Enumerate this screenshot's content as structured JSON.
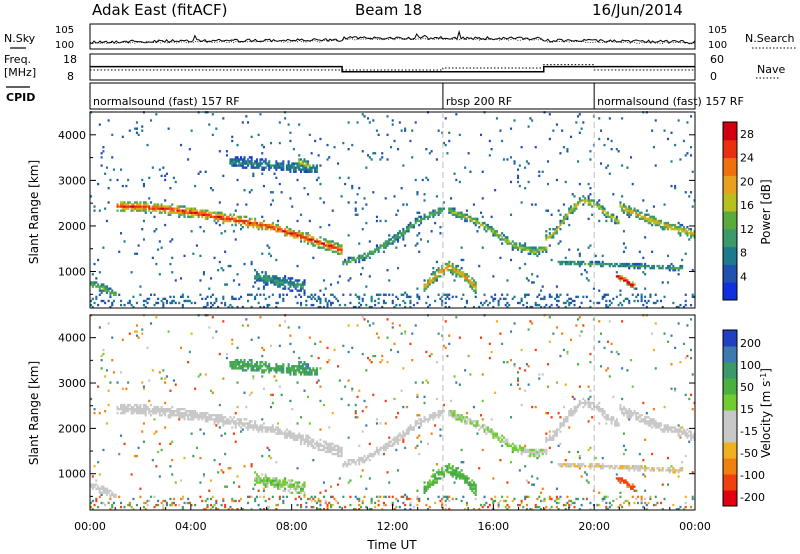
{
  "header": {
    "station": "Adak East (fitACF)",
    "beam": "Beam 18",
    "date": "16/Jun/2014"
  },
  "top_panel": {
    "left_label": "N.Sky",
    "left_ticks": [
      "10^5",
      "10^0"
    ],
    "right_label": "N.Search",
    "right_ticks": [
      "10^5",
      "10^0"
    ]
  },
  "freq_panel": {
    "left_label": "Freq.",
    "left_unit": "[MHz]",
    "left_ticks": [
      "18",
      "8"
    ],
    "right_label": "Nave",
    "right_ticks": [
      "60",
      "0"
    ]
  },
  "cpid_panel": {
    "label": "CPID",
    "segments": [
      {
        "text": "normalsound (fast) 157 RF",
        "start_h": 0,
        "end_h": 14
      },
      {
        "text": "rbsp 200 RF",
        "start_h": 14,
        "end_h": 20
      },
      {
        "text": "normalsound (fast) 157 RF",
        "start_h": 20,
        "end_h": 24
      }
    ]
  },
  "axes": {
    "ylabel": "Slant Range [km]",
    "y_ticks": [
      "1000",
      "2000",
      "3000",
      "4000"
    ],
    "x_ticks": [
      "00:00",
      "04:00",
      "08:00",
      "12:00",
      "16:00",
      "20:00",
      "00:00"
    ],
    "xlabel": "Time UT"
  },
  "power_colorbar": {
    "label": "Power [dB]",
    "ticks": [
      "4",
      "8",
      "12",
      "16",
      "20",
      "24",
      "28"
    ],
    "colors": [
      "#1030e0",
      "#2050b0",
      "#1c7a8c",
      "#3c9a6a",
      "#5aaa3c",
      "#b8c020",
      "#e8a020",
      "#f07010",
      "#e83010",
      "#d00010"
    ]
  },
  "velocity_colorbar": {
    "label": "Velocity [m s^-1]",
    "ticks": [
      "200",
      "100",
      "50",
      "15",
      "-15",
      "-50",
      "-100",
      "-200"
    ],
    "colors": [
      "#2040c0",
      "#3c7ab0",
      "#3c9a6a",
      "#4ab040",
      "#70cc30",
      "#c8c8c8",
      "#c8c8c8",
      "#f0b020",
      "#f08010",
      "#f04010",
      "#e00010"
    ]
  },
  "chart_data": {
    "type": "heatmap",
    "x_units": "hours UT",
    "xlim": [
      0,
      24
    ],
    "ylim": [
      200,
      4500
    ],
    "power_range_dB": [
      0,
      30
    ],
    "velocity_range": [
      -200,
      200
    ],
    "freq_steps_MHz": [
      {
        "start_h": 0,
        "end_h": 10,
        "value": 13.5
      },
      {
        "start_h": 10,
        "end_h": 18,
        "value": 10.5
      },
      {
        "start_h": 18,
        "end_h": 24,
        "value": 13.5
      }
    ],
    "nave_steps": [
      {
        "start_h": 0,
        "end_h": 14,
        "value": 24
      },
      {
        "start_h": 14,
        "end_h": 18,
        "value": 30
      },
      {
        "start_h": 18,
        "end_h": 20,
        "value": 40
      },
      {
        "start_h": 20,
        "end_h": 24,
        "value": 24
      }
    ],
    "echo_bands": [
      {
        "points": [
          [
            1.0,
            2420
          ],
          [
            2.5,
            2380
          ],
          [
            4.0,
            2280
          ],
          [
            5.5,
            2130
          ],
          [
            7.0,
            1980
          ],
          [
            8.5,
            1720
          ],
          [
            9.5,
            1540
          ],
          [
            10.0,
            1440
          ]
        ],
        "width_km": 240,
        "power": 18,
        "velocity": 0
      },
      {
        "points": [
          [
            10.0,
            1150
          ],
          [
            11.0,
            1350
          ],
          [
            12.0,
            1680
          ],
          [
            13.0,
            2100
          ],
          [
            14.0,
            2350
          ]
        ],
        "width_km": 180,
        "power": 9,
        "velocity": 0
      },
      {
        "points": [
          [
            13.2,
            650
          ],
          [
            13.7,
            900
          ],
          [
            14.2,
            1100
          ],
          [
            14.8,
            900
          ],
          [
            15.3,
            620
          ]
        ],
        "width_km": 260,
        "power": 14,
        "velocity": 40
      },
      {
        "points": [
          [
            14.2,
            2320
          ],
          [
            15.2,
            2100
          ],
          [
            16.0,
            1850
          ],
          [
            16.8,
            1550
          ],
          [
            17.6,
            1420
          ],
          [
            18.1,
            1500
          ]
        ],
        "width_km": 180,
        "power": 11,
        "velocity": 15
      },
      {
        "points": [
          [
            18.0,
            1650
          ],
          [
            18.5,
            1900
          ],
          [
            19.0,
            2300
          ],
          [
            19.5,
            2550
          ],
          [
            20.0,
            2450
          ],
          [
            20.5,
            2230
          ],
          [
            21.0,
            2050
          ]
        ],
        "width_km": 190,
        "power": 12,
        "velocity": 0
      },
      {
        "points": [
          [
            21.0,
            2400
          ],
          [
            22.0,
            2150
          ],
          [
            23.0,
            1950
          ],
          [
            24.0,
            1800
          ]
        ],
        "width_km": 220,
        "power": 13,
        "velocity": 0
      },
      {
        "points": [
          [
            18.5,
            1180
          ],
          [
            20.0,
            1150
          ],
          [
            21.5,
            1100
          ],
          [
            23.5,
            1050
          ]
        ],
        "width_km": 110,
        "power": 8,
        "velocity": -10
      },
      {
        "points": [
          [
            20.8,
            900
          ],
          [
            21.3,
            750
          ],
          [
            21.6,
            650
          ]
        ],
        "width_km": 140,
        "power": 24,
        "velocity": -110
      },
      {
        "points": [
          [
            0.0,
            700
          ],
          [
            0.6,
            600
          ],
          [
            1.0,
            450
          ]
        ],
        "width_km": 180,
        "power": 10,
        "velocity": 0
      },
      {
        "points": [
          [
            5.5,
            3400
          ],
          [
            7.5,
            3300
          ],
          [
            9.0,
            3250
          ]
        ],
        "width_km": 260,
        "power": 6,
        "velocity": 50
      },
      {
        "points": [
          [
            8.2,
            3400
          ],
          [
            8.8,
            3250
          ]
        ],
        "width_km": 220,
        "power": 12,
        "velocity": 90
      },
      {
        "points": [
          [
            6.5,
            900
          ],
          [
            7.5,
            750
          ],
          [
            8.5,
            650
          ]
        ],
        "width_km": 300,
        "power": 7,
        "velocity": 20
      }
    ]
  }
}
